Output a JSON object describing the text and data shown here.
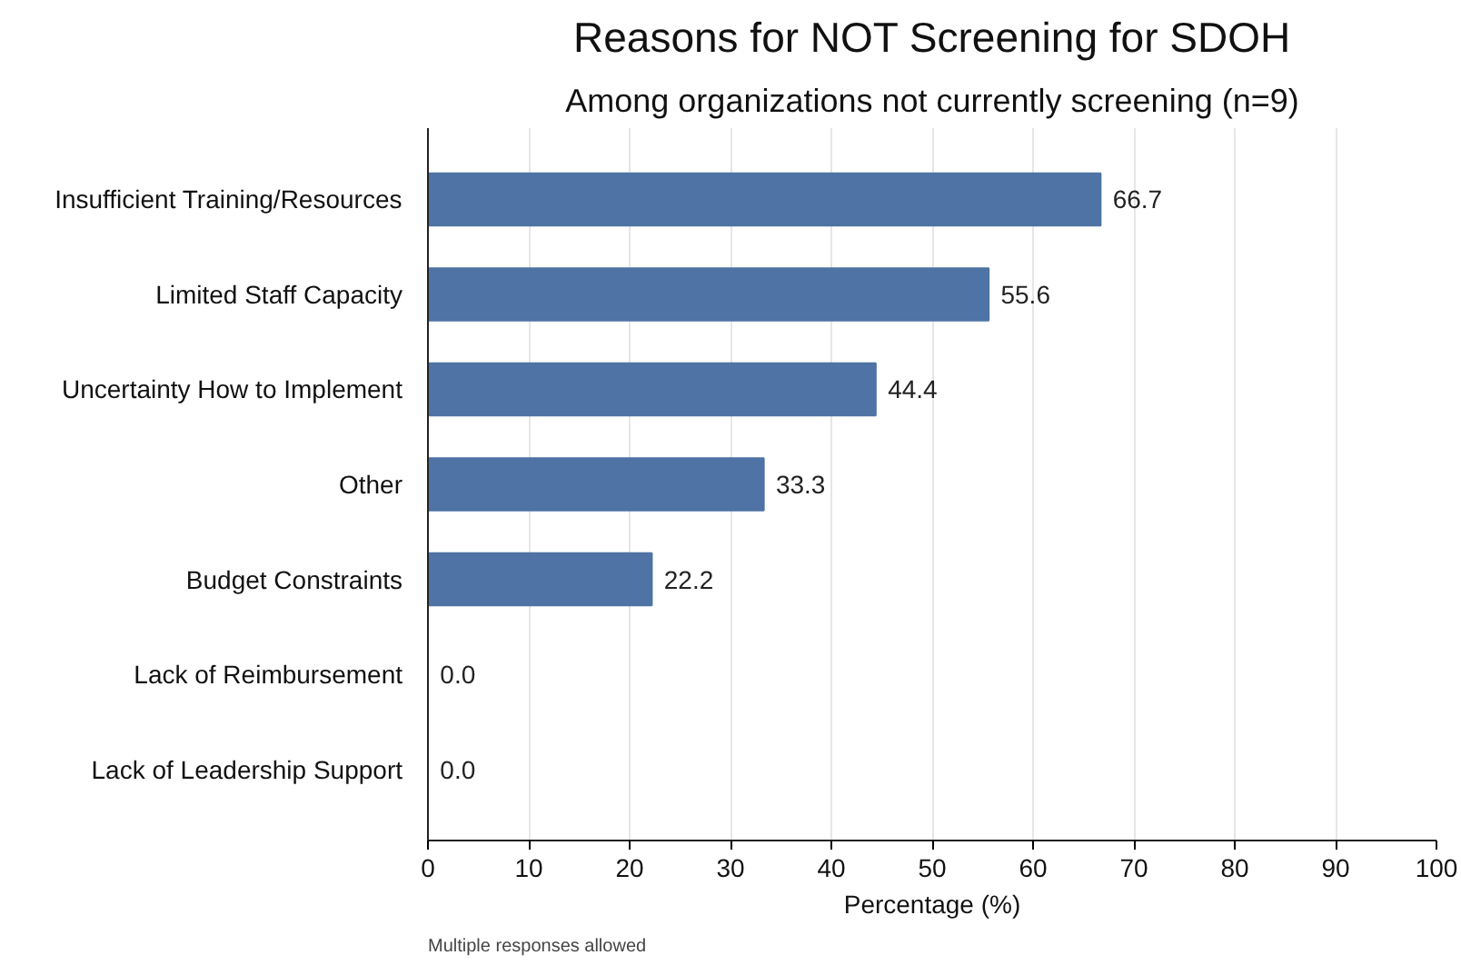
{
  "chart_data": {
    "type": "bar",
    "orientation": "horizontal",
    "title": "Reasons for NOT Screening for SDOH",
    "subtitle": "Among organizations not currently screening (n=9)",
    "xlabel": "Percentage (%)",
    "categories": [
      "Insufficient Training/Resources",
      "Limited Staff Capacity",
      "Uncertainty How to Implement",
      "Other",
      "Budget Constraints",
      "Lack of Reimbursement",
      "Lack of Leadership Support"
    ],
    "values": [
      66.7,
      55.6,
      44.4,
      33.3,
      22.2,
      0,
      0
    ],
    "value_labels": [
      "66.7",
      "55.6",
      "44.4",
      "33.3",
      "22.2",
      "0.0",
      "0.0"
    ],
    "color": "#4e73a4",
    "xlim": [
      0,
      100
    ],
    "xticks": [
      0,
      10,
      20,
      30,
      40,
      50,
      60,
      70,
      80,
      90,
      100
    ],
    "grid": "x",
    "annotations": [
      "Multiple responses allowed"
    ]
  }
}
